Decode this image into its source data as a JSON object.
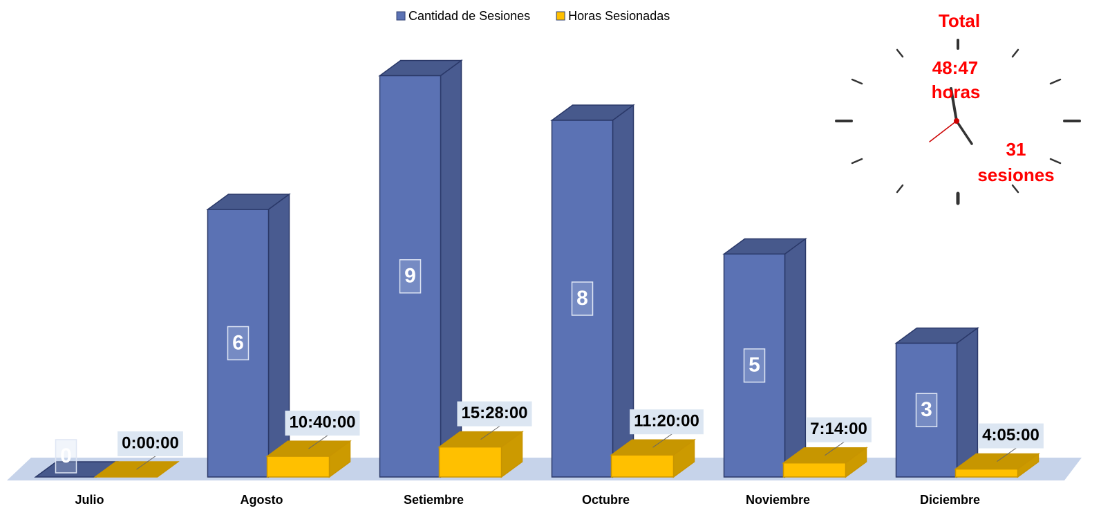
{
  "chart_data": {
    "type": "bar3d",
    "categories": [
      "Julio",
      "Agosto",
      "Setiembre",
      "Octubre",
      "Noviembre",
      "Diciembre"
    ],
    "series": [
      {
        "name": "Cantidad de Sesiones",
        "color": "#5b72b4",
        "values": [
          0,
          6,
          9,
          8,
          5,
          3
        ]
      },
      {
        "name": "Horas Sesionadas",
        "color": "#ffc000",
        "axis": "y2",
        "values": [
          0,
          10.666667,
          15.466667,
          11.333333,
          7.233333,
          4.083333
        ],
        "value_labels": [
          "0:00:00",
          "10:40:00",
          "15:28:00",
          "11:20:00",
          "7:14:00",
          "4:05:00"
        ]
      }
    ],
    "ylim": [
      0,
      10
    ],
    "y2lim": [
      0,
      230
    ],
    "annotations": [
      "Total",
      "48:47",
      "horas",
      "31",
      "sesiones"
    ]
  }
}
